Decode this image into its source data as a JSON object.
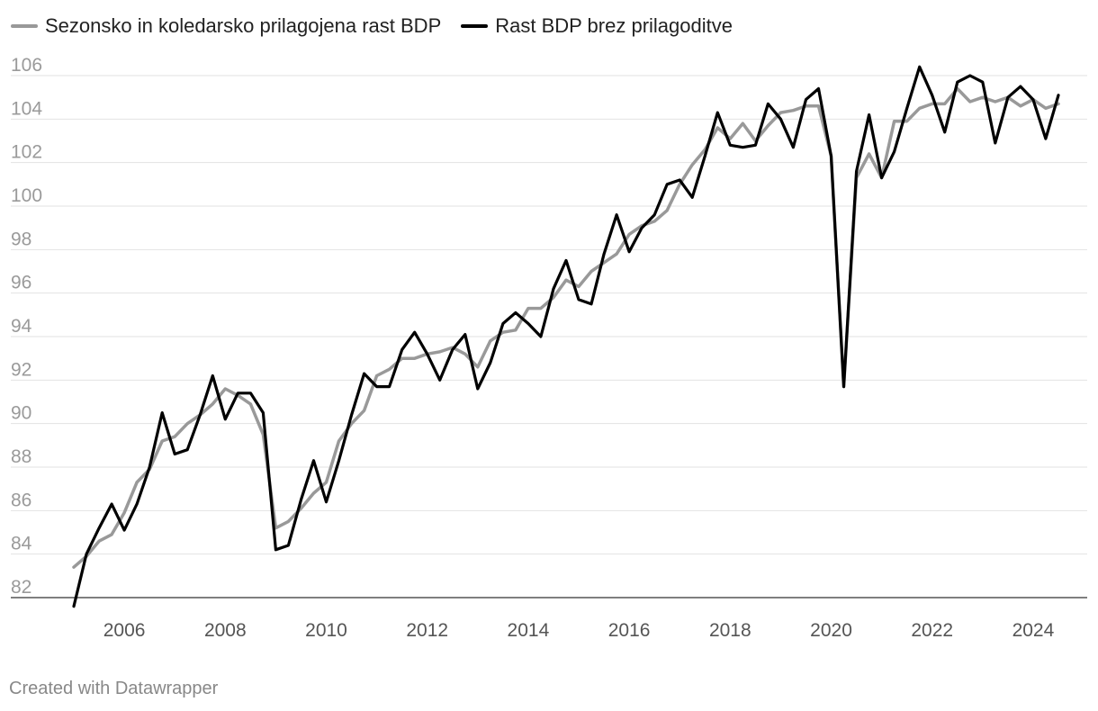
{
  "chart_data": {
    "type": "line",
    "ylim": [
      81.5,
      107
    ],
    "xlim": [
      2005.0,
      2024.75
    ],
    "y_ticks": [
      82,
      84,
      86,
      88,
      90,
      92,
      94,
      96,
      98,
      100,
      102,
      104,
      106
    ],
    "x_ticks": [
      2006,
      2008,
      2010,
      2012,
      2014,
      2016,
      2018,
      2020,
      2022,
      2024
    ],
    "grid": true,
    "legend_position": "top-left",
    "series": [
      {
        "name": "Sezonsko in koledarsko prilagojena rast BDP",
        "color": "#999999",
        "x": [
          2005.0,
          2005.25,
          2005.5,
          2005.75,
          2006.0,
          2006.25,
          2006.5,
          2006.75,
          2007.0,
          2007.25,
          2007.5,
          2007.75,
          2008.0,
          2008.25,
          2008.5,
          2008.75,
          2009.0,
          2009.25,
          2009.5,
          2009.75,
          2010.0,
          2010.25,
          2010.5,
          2010.75,
          2011.0,
          2011.25,
          2011.5,
          2011.75,
          2012.0,
          2012.25,
          2012.5,
          2012.75,
          2013.0,
          2013.25,
          2013.5,
          2013.75,
          2014.0,
          2014.25,
          2014.5,
          2014.75,
          2015.0,
          2015.25,
          2015.5,
          2015.75,
          2016.0,
          2016.25,
          2016.5,
          2016.75,
          2017.0,
          2017.25,
          2017.5,
          2017.75,
          2018.0,
          2018.25,
          2018.5,
          2018.75,
          2019.0,
          2019.25,
          2019.5,
          2019.75,
          2020.0,
          2020.25,
          2020.5,
          2020.75,
          2021.0,
          2021.25,
          2021.5,
          2021.75,
          2022.0,
          2022.25,
          2022.5,
          2022.75,
          2023.0,
          2023.25,
          2023.5,
          2023.75,
          2024.0,
          2024.25,
          2024.5
        ],
        "values": [
          83.4,
          83.9,
          84.6,
          84.9,
          85.9,
          87.3,
          87.9,
          89.2,
          89.4,
          90.0,
          90.4,
          90.9,
          91.6,
          91.3,
          90.9,
          89.5,
          85.2,
          85.5,
          86.1,
          86.8,
          87.3,
          89.2,
          90.0,
          90.6,
          92.2,
          92.5,
          93.0,
          93.0,
          93.2,
          93.3,
          93.5,
          93.2,
          92.6,
          93.8,
          94.2,
          94.3,
          95.3,
          95.3,
          95.8,
          96.6,
          96.3,
          97.0,
          97.4,
          97.8,
          98.7,
          99.1,
          99.3,
          99.8,
          101.0,
          101.9,
          102.6,
          103.6,
          103.1,
          103.8,
          103.0,
          103.7,
          104.3,
          104.4,
          104.6,
          104.6,
          102.3,
          91.7,
          101.3,
          102.4,
          101.3,
          103.9,
          103.9,
          104.5,
          104.7,
          104.7,
          105.4,
          104.8,
          105.0,
          104.8,
          105.0,
          104.6,
          104.9,
          104.5,
          104.7
        ]
      },
      {
        "name": "Rast BDP brez prilagoditve",
        "color": "#000000",
        "x": [
          2005.0,
          2005.25,
          2005.5,
          2005.75,
          2006.0,
          2006.25,
          2006.5,
          2006.75,
          2007.0,
          2007.25,
          2007.5,
          2007.75,
          2008.0,
          2008.25,
          2008.5,
          2008.75,
          2009.0,
          2009.25,
          2009.5,
          2009.75,
          2010.0,
          2010.25,
          2010.5,
          2010.75,
          2011.0,
          2011.25,
          2011.5,
          2011.75,
          2012.0,
          2012.25,
          2012.5,
          2012.75,
          2013.0,
          2013.25,
          2013.5,
          2013.75,
          2014.0,
          2014.25,
          2014.5,
          2014.75,
          2015.0,
          2015.25,
          2015.5,
          2015.75,
          2016.0,
          2016.25,
          2016.5,
          2016.75,
          2017.0,
          2017.25,
          2017.5,
          2017.75,
          2018.0,
          2018.25,
          2018.5,
          2018.75,
          2019.0,
          2019.25,
          2019.5,
          2019.75,
          2020.0,
          2020.25,
          2020.5,
          2020.75,
          2021.0,
          2021.25,
          2021.5,
          2021.75,
          2022.0,
          2022.25,
          2022.5,
          2022.75,
          2023.0,
          2023.25,
          2023.5,
          2023.75,
          2024.0,
          2024.25,
          2024.5
        ],
        "values": [
          81.6,
          84.0,
          85.2,
          86.3,
          85.1,
          86.3,
          88.0,
          90.5,
          88.6,
          88.8,
          90.4,
          92.2,
          90.2,
          91.4,
          91.4,
          90.5,
          84.2,
          84.4,
          86.5,
          88.3,
          86.4,
          88.3,
          90.4,
          92.3,
          91.7,
          91.7,
          93.4,
          94.2,
          93.2,
          92.0,
          93.4,
          94.1,
          91.6,
          92.8,
          94.6,
          95.1,
          94.6,
          94.0,
          96.2,
          97.5,
          95.7,
          95.5,
          97.8,
          99.6,
          97.9,
          99.0,
          99.6,
          101.0,
          101.2,
          100.4,
          102.3,
          104.3,
          102.8,
          102.7,
          102.8,
          104.7,
          104.0,
          102.7,
          104.9,
          105.4,
          102.3,
          91.7,
          101.6,
          104.2,
          101.3,
          102.5,
          104.5,
          106.4,
          105.1,
          103.4,
          105.7,
          106.0,
          105.7,
          102.9,
          105.0,
          105.5,
          104.9,
          103.1,
          105.1
        ]
      }
    ]
  },
  "footer": "Created with Datawrapper"
}
